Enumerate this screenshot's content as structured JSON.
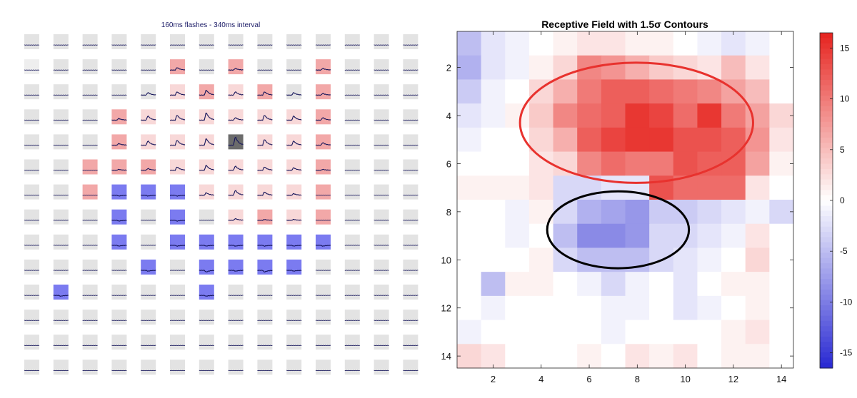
{
  "left_panel": {
    "title": "160ms flashes - 340ms interval",
    "rows": 14,
    "cols": 14
  },
  "chart_data": [
    {
      "type": "table",
      "title": "160ms flashes - 340ms interval",
      "description_of_cells": "14x14 grid of small response-trace panels; background tint: red = excitatory, blue = inhibitory, dark gray = peak cell, light gray = non-significant",
      "tint_legend": {
        "g": "#e3e3e3",
        "r": "#f2a8a8",
        "lr": "#f8d8d8",
        "b": "#7b7bf0",
        "d": "#6b6b6b",
        "lg": "#eeeeee"
      },
      "tints": [
        [
          "g",
          "g",
          "g",
          "g",
          "g",
          "g",
          "g",
          "g",
          "g",
          "g",
          "g",
          "g",
          "g",
          "g"
        ],
        [
          "lg",
          "g",
          "g",
          "g",
          "g",
          "r",
          "g",
          "r",
          "g",
          "g",
          "r",
          "g",
          "g",
          "g"
        ],
        [
          "g",
          "g",
          "g",
          "g",
          "g",
          "lr",
          "r",
          "lr",
          "r",
          "g",
          "r",
          "g",
          "g",
          "g"
        ],
        [
          "g",
          "g",
          "g",
          "r",
          "lr",
          "lr",
          "lr",
          "lr",
          "lr",
          "lr",
          "r",
          "g",
          "g",
          "g"
        ],
        [
          "g",
          "g",
          "g",
          "r",
          "lr",
          "lr",
          "lr",
          "d",
          "lr",
          "lr",
          "r",
          "g",
          "g",
          "g"
        ],
        [
          "g",
          "g",
          "r",
          "r",
          "r",
          "lr",
          "lr",
          "lr",
          "lr",
          "lr",
          "r",
          "g",
          "g",
          "g"
        ],
        [
          "g",
          "g",
          "r",
          "b",
          "b",
          "b",
          "lr",
          "lr",
          "lr",
          "lr",
          "r",
          "g",
          "g",
          "g"
        ],
        [
          "g",
          "g",
          "g",
          "b",
          "g",
          "b",
          "g",
          "lr",
          "r",
          "lr",
          "r",
          "g",
          "g",
          "g"
        ],
        [
          "g",
          "g",
          "g",
          "b",
          "g",
          "b",
          "b",
          "b",
          "b",
          "b",
          "b",
          "g",
          "g",
          "g"
        ],
        [
          "g",
          "g",
          "g",
          "g",
          "b",
          "g",
          "b",
          "b",
          "b",
          "b",
          "g",
          "g",
          "g",
          "g"
        ],
        [
          "g",
          "b",
          "g",
          "g",
          "g",
          "g",
          "b",
          "g",
          "g",
          "g",
          "g",
          "g",
          "g",
          "g"
        ],
        [
          "g",
          "g",
          "g",
          "g",
          "g",
          "g",
          "g",
          "g",
          "g",
          "g",
          "g",
          "g",
          "g",
          "g"
        ],
        [
          "g",
          "g",
          "g",
          "g",
          "g",
          "g",
          "g",
          "g",
          "g",
          "g",
          "g",
          "g",
          "g",
          "g"
        ],
        [
          "g",
          "g",
          "g",
          "g",
          "g",
          "g",
          "g",
          "g",
          "g",
          "g",
          "g",
          "g",
          "g",
          "g"
        ]
      ],
      "peak_amplitude": [
        [
          0,
          0,
          0,
          0,
          0,
          0,
          0,
          0,
          0,
          0,
          0,
          0,
          0,
          0
        ],
        [
          0,
          0,
          0,
          0,
          0,
          0.3,
          0,
          0.2,
          0,
          0,
          0.2,
          0,
          0,
          0
        ],
        [
          0,
          0,
          0,
          0,
          0.3,
          0.4,
          0.6,
          0.4,
          0.4,
          0.3,
          0.2,
          0,
          0,
          0
        ],
        [
          0,
          0,
          0,
          0.2,
          0.5,
          0.6,
          0.9,
          0.3,
          0.6,
          0.5,
          0.3,
          0,
          0,
          0
        ],
        [
          0,
          0,
          0,
          0.2,
          0.5,
          0.6,
          0.8,
          1.0,
          0.7,
          0.5,
          0.3,
          0,
          0,
          0
        ],
        [
          0,
          0,
          0,
          0.1,
          0.2,
          0.4,
          0.6,
          0.5,
          0.4,
          0.3,
          0.1,
          0,
          0,
          0
        ],
        [
          0,
          0,
          0,
          -0.1,
          -0.1,
          -0.1,
          0.3,
          0.6,
          0.4,
          0.2,
          0,
          0,
          0,
          0
        ],
        [
          0,
          0,
          0,
          -0.1,
          0,
          -0.1,
          0,
          0.2,
          0.1,
          0.1,
          0,
          0,
          0,
          0
        ],
        [
          0,
          0,
          0,
          -0.1,
          0,
          -0.1,
          -0.1,
          -0.1,
          -0.1,
          -0.1,
          -0.1,
          0,
          0,
          0
        ],
        [
          0,
          0,
          0,
          0,
          -0.1,
          0,
          -0.2,
          -0.1,
          -0.2,
          -0.1,
          0,
          0,
          0,
          0
        ],
        [
          0,
          -0.1,
          0,
          0,
          0,
          0,
          -0.1,
          0,
          0,
          0,
          0,
          0,
          0,
          0
        ],
        [
          0,
          0,
          0,
          0,
          0,
          0,
          0,
          0,
          0,
          0,
          0,
          0,
          0,
          0
        ],
        [
          0,
          0,
          0,
          0,
          0,
          0,
          0,
          0,
          0,
          0,
          0,
          0,
          0,
          0
        ],
        [
          0,
          0,
          0,
          0,
          0,
          0,
          0,
          0,
          0,
          0,
          0,
          0,
          0,
          0
        ]
      ]
    },
    {
      "type": "heatmap",
      "title": "Receptive Field with 1.5σ Contours",
      "xlabel": "",
      "ylabel": "",
      "xlim": [
        0.5,
        14.5
      ],
      "ylim": [
        14.5,
        0.5
      ],
      "xticks": [
        2,
        4,
        6,
        8,
        10,
        12,
        14
      ],
      "yticks": [
        2,
        4,
        6,
        8,
        10,
        12,
        14
      ],
      "colorbar": {
        "ticks": [
          15,
          10,
          5,
          0,
          -5,
          -10,
          -15
        ],
        "range": [
          -16.5,
          16.5
        ],
        "colormap": "blue-white-red"
      },
      "values": [
        [
          -5,
          -2,
          -1,
          0,
          1,
          2,
          2,
          1,
          1,
          0,
          -1,
          -2,
          -1,
          0
        ],
        [
          -6,
          -2,
          -1,
          1,
          3,
          9,
          8,
          6,
          4,
          3,
          2,
          5,
          2,
          0
        ],
        [
          -4,
          -1,
          0,
          3,
          6,
          10,
          12,
          12,
          11,
          10,
          9,
          7,
          5,
          0
        ],
        [
          -2,
          -1,
          1,
          4,
          9,
          11,
          12,
          15,
          14,
          11,
          15,
          10,
          7,
          3
        ],
        [
          -1,
          0,
          0,
          3,
          6,
          12,
          14,
          15,
          15,
          13,
          13,
          12,
          8,
          2
        ],
        [
          0,
          0,
          0,
          2,
          3,
          9,
          11,
          10,
          10,
          13,
          12,
          12,
          7,
          1
        ],
        [
          1,
          1,
          1,
          2,
          -3,
          -3,
          -2,
          -2,
          13,
          11,
          11,
          11,
          2,
          0
        ],
        [
          0,
          0,
          -1,
          1,
          -3,
          -6,
          -7,
          -8,
          -4,
          -4,
          -3,
          -2,
          -1,
          -3
        ],
        [
          0,
          0,
          -1,
          0,
          -5,
          -9,
          -9,
          -8,
          -3,
          -3,
          -2,
          -1,
          2,
          0
        ],
        [
          0,
          0,
          0,
          1,
          -3,
          -5,
          -5,
          -5,
          -3,
          -2,
          -1,
          0,
          3,
          0
        ],
        [
          0,
          -5,
          1,
          1,
          0,
          -1,
          -3,
          -1,
          0,
          -2,
          0,
          1,
          1,
          0
        ],
        [
          0,
          -1,
          0,
          0,
          0,
          0,
          -1,
          -1,
          0,
          -2,
          -1,
          0,
          1,
          0
        ],
        [
          -1,
          0,
          0,
          0,
          0,
          0,
          -1,
          0,
          0,
          0,
          0,
          1,
          2,
          0
        ],
        [
          3,
          2,
          0,
          0,
          0,
          1,
          0,
          2,
          1,
          2,
          0,
          1,
          1,
          0
        ]
      ],
      "contours": [
        {
          "color": "#e8322e",
          "center": [
            7.97,
            4.3
          ],
          "radii": [
            4.85,
            2.5
          ]
        },
        {
          "color": "#000000",
          "center": [
            7.2,
            8.75
          ],
          "radii": [
            2.95,
            1.6
          ]
        }
      ]
    }
  ]
}
